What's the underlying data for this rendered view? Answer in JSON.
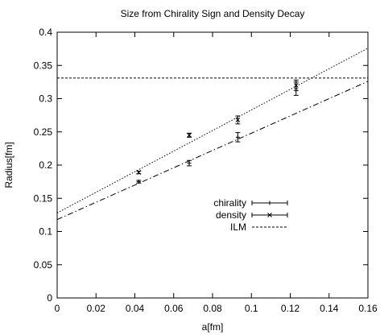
{
  "chart_data": {
    "type": "scatter",
    "title": "Size from Chirality Sign and Density Decay",
    "xlabel": "a[fm]",
    "ylabel": "Radius[fm]",
    "xlim": [
      0,
      0.16
    ],
    "ylim": [
      0,
      0.4
    ],
    "x_ticks": [
      0,
      0.02,
      0.04,
      0.06,
      0.08,
      0.1,
      0.12,
      0.14,
      0.16
    ],
    "x_tick_labels": [
      "0",
      "0.02",
      "0.04",
      "0.06",
      "0.08",
      "0.1",
      "0.12",
      "0.14",
      "0.16"
    ],
    "y_ticks": [
      0,
      0.05,
      0.1,
      0.15,
      0.2,
      0.25,
      0.3,
      0.35,
      0.4
    ],
    "y_tick_labels": [
      "0",
      "0.05",
      "0.1",
      "0.15",
      "0.2",
      "0.25",
      "0.3",
      "0.35",
      "0.4"
    ],
    "grid": false,
    "legend_position": "lower-right",
    "series": [
      {
        "name": "chirality",
        "marker": "plus",
        "color": "#000000",
        "x": [
          0.042,
          0.068,
          0.093,
          0.123
        ],
        "y": [
          0.175,
          0.203,
          0.242,
          0.315
        ],
        "yerr": [
          0.002,
          0.004,
          0.007,
          0.01
        ]
      },
      {
        "name": "density",
        "marker": "cross",
        "color": "#000000",
        "x": [
          0.042,
          0.068,
          0.093,
          0.123
        ],
        "y": [
          0.189,
          0.245,
          0.268,
          0.32
        ],
        "yerr": [
          0.002,
          0.003,
          0.006,
          0.008
        ]
      },
      {
        "name": "ILM",
        "marker": "none",
        "color": "#000000",
        "y_constant": 0.331
      }
    ],
    "fit_lines": [
      {
        "series": "chirality",
        "style": "dash-dot",
        "intercept": 0.118,
        "slope": 1.3
      },
      {
        "series": "density",
        "style": "dotted",
        "intercept": 0.128,
        "slope": 1.55
      }
    ]
  }
}
